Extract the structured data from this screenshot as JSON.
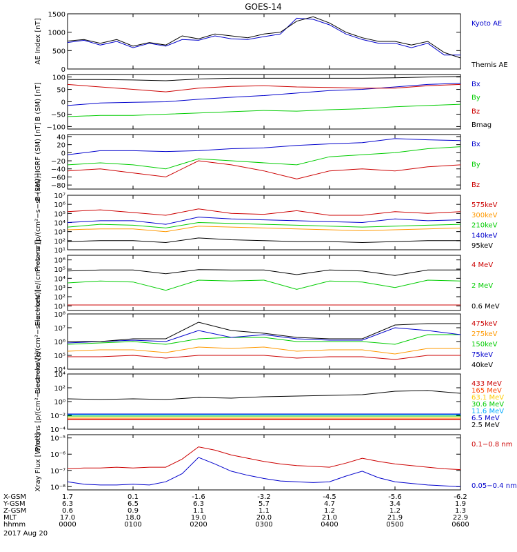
{
  "title": "GOES-14",
  "date_label": "2017 Aug 20",
  "chart_data": [
    {
      "type": "line",
      "ylabel": "AE Index [nT]",
      "ylim": [
        0,
        1500
      ],
      "log": false,
      "yticks": [
        0,
        500,
        1000,
        1500
      ],
      "ytick_labels": [
        "0",
        "500",
        "1000",
        "1500"
      ],
      "x": [
        0,
        0.25,
        0.5,
        0.75,
        1,
        1.25,
        1.5,
        1.75,
        2,
        2.25,
        2.5,
        2.75,
        3,
        3.25,
        3.5,
        3.75,
        4,
        4.25,
        4.5,
        4.75,
        5,
        5.25,
        5.5,
        5.75,
        6
      ],
      "series": [
        {
          "name": "Kyoto AE",
          "color": "#0000cc",
          "values": [
            720,
            780,
            650,
            750,
            580,
            700,
            620,
            800,
            780,
            900,
            820,
            800,
            880,
            950,
            1380,
            1350,
            1200,
            950,
            800,
            700,
            700,
            580,
            700,
            380,
            380
          ]
        },
        {
          "name": "Themis AE",
          "color": "#000000",
          "values": [
            760,
            800,
            700,
            800,
            620,
            720,
            650,
            900,
            820,
            950,
            900,
            850,
            950,
            1000,
            1300,
            1420,
            1250,
            1000,
            850,
            750,
            750,
            650,
            750,
            450,
            300
          ]
        }
      ]
    },
    {
      "type": "line",
      "ylabel": "B (SM) [nT]",
      "ylim": [
        -110,
        110
      ],
      "log": false,
      "yticks": [
        -100,
        -50,
        0,
        50,
        100
      ],
      "ytick_labels": [
        "−100",
        "−50",
        "0",
        "50",
        "100"
      ],
      "x": [
        0,
        0.5,
        1,
        1.5,
        2,
        2.5,
        3,
        3.5,
        4,
        4.5,
        5,
        5.5,
        6
      ],
      "series": [
        {
          "name": "Bx",
          "color": "#0000cc",
          "values": [
            -15,
            -5,
            -2,
            0,
            10,
            18,
            25,
            35,
            45,
            50,
            60,
            70,
            75
          ]
        },
        {
          "name": "By",
          "color": "#00cc00",
          "values": [
            -60,
            -55,
            -55,
            -50,
            -45,
            -40,
            -35,
            -38,
            -32,
            -28,
            -20,
            -15,
            -10
          ]
        },
        {
          "name": "Bz",
          "color": "#cc0000",
          "values": [
            70,
            60,
            50,
            40,
            55,
            62,
            65,
            60,
            58,
            55,
            55,
            65,
            70
          ]
        },
        {
          "name": "Bmag",
          "color": "#000000",
          "values": [
            90,
            90,
            88,
            85,
            92,
            95,
            95,
            95,
            95,
            95,
            97,
            100,
            102
          ]
        }
      ]
    },
    {
      "type": "line",
      "ylabel": "B (SM)−IGRF (SM) [nT]",
      "ylim": [
        -90,
        45
      ],
      "log": false,
      "yticks": [
        -80,
        -60,
        -40,
        -20,
        0,
        20,
        40
      ],
      "ytick_labels": [
        "−80",
        "−60",
        "−40",
        "−20",
        "0",
        "20",
        "40"
      ],
      "x": [
        0,
        0.5,
        1,
        1.5,
        2,
        2.5,
        3,
        3.5,
        4,
        4.5,
        5,
        5.5,
        6
      ],
      "series": [
        {
          "name": "Bx",
          "color": "#0000cc",
          "values": [
            -5,
            5,
            5,
            3,
            5,
            10,
            12,
            18,
            22,
            25,
            35,
            32,
            30
          ]
        },
        {
          "name": "By",
          "color": "#00cc00",
          "values": [
            -30,
            -25,
            -30,
            -40,
            -15,
            -20,
            -25,
            -30,
            -10,
            -5,
            0,
            10,
            15
          ]
        },
        {
          "name": "Bz",
          "color": "#cc0000",
          "values": [
            -45,
            -40,
            -50,
            -60,
            -20,
            -30,
            -45,
            -65,
            -45,
            -40,
            -45,
            -35,
            -30
          ]
        }
      ]
    },
    {
      "type": "line",
      "ylabel": "Protons [p/(cm²−s−sr−keV)]",
      "ylim": [
        1,
        7
      ],
      "log": true,
      "yticks": [
        1,
        2,
        3,
        4,
        5,
        6,
        7
      ],
      "ytick_labels": [
        "10¹",
        "10²",
        "10³",
        "10⁴",
        "10⁵",
        "10⁶",
        "10⁷"
      ],
      "x": [
        0,
        0.5,
        1,
        1.5,
        2,
        2.5,
        3,
        3.5,
        4,
        4.5,
        5,
        5.5,
        6
      ],
      "series": [
        {
          "name": "575keV",
          "color": "#cc0000",
          "values": [
            5.2,
            5.4,
            5.1,
            4.8,
            5.5,
            5.0,
            4.9,
            5.3,
            4.8,
            4.8,
            5.2,
            5.0,
            5.2
          ]
        },
        {
          "name": "300keV",
          "color": "#ff9900",
          "values": [
            3.2,
            3.3,
            3.3,
            3.0,
            3.6,
            3.5,
            3.4,
            3.3,
            3.2,
            3.1,
            3.2,
            3.3,
            3.4
          ]
        },
        {
          "name": "210keV",
          "color": "#00cc00",
          "values": [
            3.5,
            3.8,
            3.7,
            3.4,
            4.0,
            3.9,
            3.8,
            3.7,
            3.6,
            3.5,
            3.6,
            3.7,
            3.8
          ]
        },
        {
          "name": "140keV",
          "color": "#0000cc",
          "values": [
            4.0,
            4.2,
            4.2,
            3.8,
            4.6,
            4.4,
            4.3,
            4.2,
            4.1,
            4.0,
            4.4,
            4.2,
            4.3
          ]
        },
        {
          "name": "95keV",
          "color": "#000000",
          "values": [
            1.9,
            2.0,
            2.0,
            1.8,
            2.3,
            2.1,
            2.0,
            1.9,
            1.9,
            1.8,
            1.9,
            2.0,
            2.0
          ]
        }
      ]
    },
    {
      "type": "line",
      "ylabel": "Electrons [e/(cm²−s−sr)]",
      "ylim": [
        0.5,
        6.5
      ],
      "log": true,
      "yticks": [
        1,
        2,
        3,
        4,
        5,
        6
      ],
      "ytick_labels": [
        "10¹",
        "10²",
        "10³",
        "10⁴",
        "10⁵",
        "10⁶"
      ],
      "x": [
        0,
        0.5,
        1,
        1.5,
        2,
        2.5,
        3,
        3.5,
        4,
        4.5,
        5,
        5.5,
        6
      ],
      "series": [
        {
          "name": "4 MeV",
          "color": "#cc0000",
          "values": [
            1.1,
            1.1,
            1.1,
            1.1,
            1.1,
            1.1,
            1.1,
            1.1,
            1.1,
            1.1,
            1.1,
            1.1,
            1.1
          ]
        },
        {
          "name": "2 MeV",
          "color": "#00cc00",
          "values": [
            3.5,
            3.7,
            3.6,
            2.7,
            3.8,
            3.7,
            3.8,
            2.8,
            3.7,
            3.6,
            3.0,
            3.8,
            3.7
          ]
        },
        {
          "name": "0.6 MeV",
          "color": "#000000",
          "values": [
            4.8,
            4.9,
            4.9,
            4.5,
            4.95,
            4.9,
            4.9,
            4.4,
            4.9,
            4.8,
            4.3,
            4.9,
            4.9
          ]
        }
      ]
    },
    {
      "type": "line",
      "ylabel": "Electrons [e/(cm²−s−sr−keV)]",
      "ylim": [
        4,
        8
      ],
      "log": true,
      "yticks": [
        4,
        5,
        6,
        7,
        8
      ],
      "ytick_labels": [
        "10⁴",
        "10⁵",
        "10⁶",
        "10⁷",
        "10⁸"
      ],
      "x": [
        0,
        0.5,
        1,
        1.5,
        2,
        2.5,
        3,
        3.5,
        4,
        4.5,
        5,
        5.5,
        6
      ],
      "series": [
        {
          "name": "475keV",
          "color": "#cc0000",
          "values": [
            4.9,
            4.9,
            5.0,
            4.8,
            5.0,
            5.0,
            5.0,
            4.8,
            4.9,
            4.9,
            4.7,
            5.0,
            5.0
          ]
        },
        {
          "name": "275keV",
          "color": "#ff9900",
          "values": [
            5.3,
            5.4,
            5.4,
            5.2,
            5.6,
            5.5,
            5.6,
            5.3,
            5.4,
            5.4,
            5.1,
            5.5,
            5.5
          ]
        },
        {
          "name": "150keV",
          "color": "#00cc00",
          "values": [
            5.8,
            5.9,
            6.0,
            5.8,
            6.2,
            6.3,
            6.3,
            6.0,
            6.0,
            6.0,
            5.8,
            6.5,
            6.5
          ]
        },
        {
          "name": "75keV",
          "color": "#0000cc",
          "values": [
            5.9,
            6.0,
            6.1,
            6.0,
            6.8,
            6.3,
            6.5,
            6.2,
            6.1,
            6.1,
            7.0,
            6.8,
            6.5
          ]
        },
        {
          "name": "40keV",
          "color": "#000000",
          "values": [
            6.0,
            6.0,
            6.2,
            6.2,
            7.4,
            6.8,
            6.6,
            6.3,
            6.2,
            6.2,
            7.2,
            7.3,
            7.3
          ]
        }
      ]
    },
    {
      "type": "line",
      "ylabel": "Protons [p/(cm²−s−sr−keV)]",
      "ylim": [
        -4,
        4
      ],
      "log": true,
      "yticks": [
        -4,
        -2,
        0,
        2,
        4
      ],
      "ytick_labels": [
        "10⁻⁴",
        "10⁻²",
        "10⁰",
        "10²",
        "10⁴"
      ],
      "x": [
        0,
        0.5,
        1,
        1.5,
        2,
        2.5,
        3,
        3.5,
        4,
        4.5,
        5,
        5.5,
        6
      ],
      "series": [
        {
          "name": "433 MeV",
          "color": "#cc0000",
          "values": [
            -2.6,
            -2.6,
            -2.6,
            -2.6,
            -2.6,
            -2.6,
            -2.6,
            -2.6,
            -2.6,
            -2.6,
            -2.6,
            -2.6,
            -2.6
          ]
        },
        {
          "name": "165 MeV",
          "color": "#ff4400",
          "values": [
            -2.5,
            -2.5,
            -2.5,
            -2.5,
            -2.5,
            -2.5,
            -2.5,
            -2.5,
            -2.5,
            -2.5,
            -2.5,
            -2.5,
            -2.5
          ]
        },
        {
          "name": "63.1 MeV",
          "color": "#ffcc00",
          "values": [
            -2.3,
            -2.3,
            -2.3,
            -2.3,
            -2.3,
            -2.3,
            -2.3,
            -2.3,
            -2.3,
            -2.3,
            -2.3,
            -2.3,
            -2.3
          ]
        },
        {
          "name": "30.6 MeV",
          "color": "#00cc00",
          "values": [
            -2.1,
            -2.1,
            -2.1,
            -2.1,
            -2.1,
            -2.1,
            -2.1,
            -2.1,
            -2.1,
            -2.1,
            -2.1,
            -2.1,
            -2.1
          ]
        },
        {
          "name": "11.6 MeV",
          "color": "#00aaff",
          "values": [
            -1.9,
            -1.9,
            -1.9,
            -1.9,
            -1.9,
            -1.9,
            -1.9,
            -1.9,
            -1.9,
            -1.9,
            -1.9,
            -1.9,
            -1.9
          ]
        },
        {
          "name": "6.5 MeV",
          "color": "#0000cc",
          "values": [
            -1.8,
            -1.8,
            -1.8,
            -1.8,
            -1.8,
            -1.8,
            -1.8,
            -1.8,
            -1.8,
            -1.8,
            -1.8,
            -1.8,
            -1.8
          ]
        },
        {
          "name": "2.5 MeV",
          "color": "#000000",
          "values": [
            0.4,
            0.3,
            0.4,
            0.3,
            0.6,
            0.5,
            0.7,
            0.8,
            0.9,
            1.0,
            1.5,
            1.6,
            1.2
          ]
        }
      ]
    },
    {
      "type": "line",
      "ylabel": "Xray Flux [W/m²]",
      "ylim": [
        -8.2,
        -4.8
      ],
      "log": true,
      "yticks": [
        -8,
        -7,
        -6,
        -5
      ],
      "ytick_labels": [
        "10⁻⁸",
        "10⁻⁷",
        "10⁻⁶",
        "10⁻⁵"
      ],
      "x": [
        0,
        0.25,
        0.5,
        0.75,
        1,
        1.25,
        1.5,
        1.75,
        2,
        2.25,
        2.5,
        2.75,
        3,
        3.25,
        3.5,
        3.75,
        4,
        4.25,
        4.5,
        4.75,
        5,
        5.25,
        5.5,
        5.75,
        6
      ],
      "series": [
        {
          "name": "0.1−0.8 nm",
          "color": "#cc0000",
          "values": [
            -6.9,
            -6.85,
            -6.85,
            -6.8,
            -6.85,
            -6.8,
            -6.8,
            -6.3,
            -5.55,
            -5.75,
            -6.05,
            -6.25,
            -6.45,
            -6.6,
            -6.7,
            -6.75,
            -6.8,
            -6.55,
            -6.25,
            -6.45,
            -6.6,
            -6.7,
            -6.8,
            -6.9,
            -6.95
          ]
        },
        {
          "name": "0.05−0.4 nm",
          "color": "#0000cc",
          "values": [
            -7.7,
            -7.85,
            -7.9,
            -7.9,
            -7.85,
            -7.9,
            -7.7,
            -7.2,
            -6.2,
            -6.6,
            -7.05,
            -7.3,
            -7.5,
            -7.65,
            -7.7,
            -7.75,
            -7.7,
            -7.35,
            -7.05,
            -7.45,
            -7.7,
            -7.8,
            -7.9,
            -7.95,
            -8.0
          ]
        }
      ]
    }
  ],
  "orbit_table": {
    "rows": [
      {
        "label": "X-GSM",
        "values": [
          "1.7",
          "0.1",
          "-1.6",
          "-3.2",
          "-4.5",
          "-5.6",
          "-6.2"
        ]
      },
      {
        "label": "Y-GSM",
        "values": [
          "6.3",
          "6.5",
          "6.3",
          "5.7",
          "4.7",
          "3.4",
          "1.9"
        ]
      },
      {
        "label": "Z-GSM",
        "values": [
          "0.6",
          "0.9",
          "1.1",
          "1.1",
          "1.2",
          "1.2",
          "1.3"
        ]
      },
      {
        "label": "MLT",
        "values": [
          "17.0",
          "18.0",
          "19.0",
          "20.0",
          "21.0",
          "21.9",
          "22.9"
        ]
      },
      {
        "label": "hhmm",
        "values": [
          "0000",
          "0100",
          "0200",
          "0300",
          "0400",
          "0500",
          "0600"
        ]
      }
    ]
  }
}
